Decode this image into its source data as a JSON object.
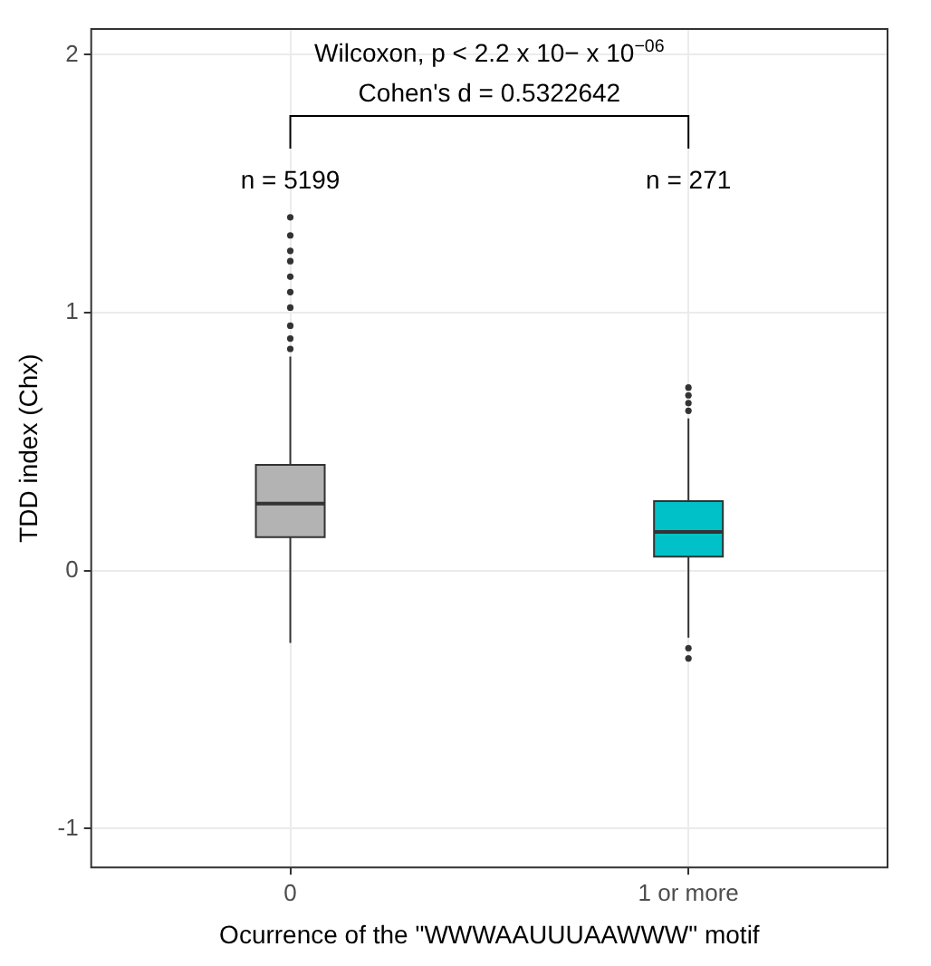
{
  "chart_data": {
    "type": "box",
    "xlabel": "Ocurrence of the \"WWWAAUUUAAWWW\" motif",
    "ylabel": "TDD index (Chx)",
    "categories": [
      "0",
      "1 or more"
    ],
    "colors": [
      "#b3b3b3",
      "#00c1c8"
    ],
    "boxes": [
      {
        "low": -0.28,
        "q1": 0.13,
        "median": 0.26,
        "q3": 0.41,
        "high": 0.83,
        "outliers": [
          0.86,
          0.9,
          0.95,
          1.02,
          1.08,
          1.14,
          1.2,
          1.24,
          1.3,
          1.37
        ]
      },
      {
        "low": -0.26,
        "q1": 0.055,
        "median": 0.15,
        "q3": 0.27,
        "high": 0.59,
        "outliers": [
          0.62,
          0.65,
          0.68,
          0.71,
          -0.3,
          -0.34
        ]
      }
    ],
    "ylim": [
      -1.15,
      2.1
    ],
    "yticks": [
      -1,
      0,
      1,
      2
    ],
    "grid": true,
    "annotations": [
      "Wilcoxon, p < 2.2 x 10− x 10$^{−06}$",
      "Cohen's d = 0.5322642",
      "n = 5199",
      "n = 271"
    ]
  }
}
